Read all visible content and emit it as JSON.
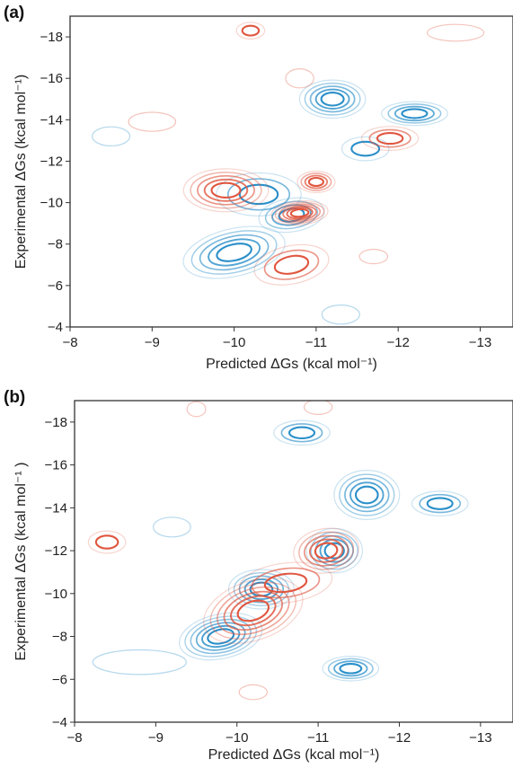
{
  "chart_data": [
    {
      "panel": "(a)",
      "type": "contour",
      "xlabel": "Predicted ΔGs (kcal mol⁻¹)",
      "ylabel": "Experimental ΔGs (kcal mol⁻¹)",
      "xlim": [
        -8,
        -13.4
      ],
      "ylim": [
        -4,
        -19
      ],
      "xticks": [
        "−8",
        "−9",
        "−10",
        "−11",
        "−12",
        "−13"
      ],
      "yticks": [
        "−4",
        "−6",
        "−8",
        "−10",
        "−12",
        "−14",
        "−16",
        "−18"
      ],
      "xtick_values": [
        -8,
        -9,
        -10,
        -11,
        -12,
        -13
      ],
      "ytick_values": [
        -4,
        -6,
        -8,
        -10,
        -12,
        -14,
        -16,
        -18
      ],
      "grid": false,
      "series": [
        {
          "color": "#2a8fc9",
          "clusters": [
            {
              "x": -10.0,
              "y": -7.6,
              "sx": 0.55,
              "sy": 1.0,
              "rho": 0.5,
              "levels": 5
            },
            {
              "x": -10.7,
              "y": -9.4,
              "sx": 0.35,
              "sy": 0.7,
              "rho": 0.3,
              "levels": 4
            },
            {
              "x": -11.2,
              "y": -15.0,
              "sx": 0.35,
              "sy": 0.8,
              "rho": 0.0,
              "levels": 5
            },
            {
              "x": -12.2,
              "y": -14.3,
              "sx": 0.35,
              "sy": 0.5,
              "rho": 0.0,
              "levels": 4
            },
            {
              "x": -10.3,
              "y": -10.4,
              "sx": 0.45,
              "sy": 0.9,
              "rho": 0.0,
              "levels": 3
            },
            {
              "x": -11.6,
              "y": -12.6,
              "sx": 0.25,
              "sy": 0.5,
              "rho": 0.0,
              "levels": 2
            },
            {
              "x": -11.3,
              "y": -4.6,
              "sx": 0.2,
              "sy": 0.4,
              "rho": 0.0,
              "levels": 1
            },
            {
              "x": -8.5,
              "y": -13.2,
              "sx": 0.2,
              "sy": 0.4,
              "rho": 0.0,
              "levels": 1
            }
          ]
        },
        {
          "color": "#e0563f",
          "clusters": [
            {
              "x": -9.9,
              "y": -10.6,
              "sx": 0.45,
              "sy": 0.9,
              "rho": 0.0,
              "levels": 5
            },
            {
              "x": -10.8,
              "y": -9.5,
              "sx": 0.3,
              "sy": 0.5,
              "rho": 0.2,
              "levels": 6
            },
            {
              "x": -11.0,
              "y": -11.0,
              "sx": 0.2,
              "sy": 0.45,
              "rho": 0.0,
              "levels": 4
            },
            {
              "x": -11.9,
              "y": -13.1,
              "sx": 0.3,
              "sy": 0.5,
              "rho": 0.0,
              "levels": 3
            },
            {
              "x": -10.7,
              "y": -7.0,
              "sx": 0.4,
              "sy": 0.8,
              "rho": 0.4,
              "levels": 3
            },
            {
              "x": -10.8,
              "y": -16.0,
              "sx": 0.15,
              "sy": 0.4,
              "rho": 0.0,
              "levels": 1
            },
            {
              "x": -9.0,
              "y": -13.9,
              "sx": 0.25,
              "sy": 0.4,
              "rho": 0.0,
              "levels": 1
            },
            {
              "x": -12.7,
              "y": -18.2,
              "sx": 0.3,
              "sy": 0.35,
              "rho": 0.0,
              "levels": 1
            },
            {
              "x": -10.2,
              "y": -18.3,
              "sx": 0.15,
              "sy": 0.35,
              "rho": 0.0,
              "levels": 2
            },
            {
              "x": -11.7,
              "y": -7.4,
              "sx": 0.15,
              "sy": 0.3,
              "rho": 0.0,
              "levels": 1
            }
          ]
        }
      ]
    },
    {
      "panel": "(b)",
      "type": "contour",
      "xlabel": "Predicted ΔGs (kcal mol⁻¹)",
      "ylabel": "Experimental ΔGs (kcal mol⁻¹ )",
      "xlim": [
        -8,
        -13.4
      ],
      "ylim": [
        -4,
        -19
      ],
      "xticks": [
        "−8",
        "−9",
        "−10",
        "−11",
        "−12",
        "−13"
      ],
      "yticks": [
        "−4",
        "−6",
        "−8",
        "−10",
        "−12",
        "−14",
        "−16",
        "−18"
      ],
      "xtick_values": [
        -8,
        -9,
        -10,
        -11,
        -12,
        -13
      ],
      "ytick_values": [
        -4,
        -6,
        -8,
        -10,
        -12,
        -14,
        -16,
        -18
      ],
      "grid": false,
      "series": [
        {
          "color": "#2a8fc9",
          "clusters": [
            {
              "x": -9.8,
              "y": -8.0,
              "sx": 0.45,
              "sy": 0.9,
              "rho": 0.4,
              "levels": 6
            },
            {
              "x": -10.3,
              "y": -10.2,
              "sx": 0.35,
              "sy": 0.8,
              "rho": 0.0,
              "levels": 5
            },
            {
              "x": -11.2,
              "y": -12.0,
              "sx": 0.3,
              "sy": 0.9,
              "rho": 0.0,
              "levels": 5
            },
            {
              "x": -11.6,
              "y": -14.6,
              "sx": 0.35,
              "sy": 1.0,
              "rho": 0.0,
              "levels": 5
            },
            {
              "x": -11.4,
              "y": -6.5,
              "sx": 0.3,
              "sy": 0.5,
              "rho": 0.0,
              "levels": 4
            },
            {
              "x": -10.8,
              "y": -17.5,
              "sx": 0.3,
              "sy": 0.5,
              "rho": 0.0,
              "levels": 3
            },
            {
              "x": -12.5,
              "y": -14.2,
              "sx": 0.3,
              "sy": 0.5,
              "rho": 0.0,
              "levels": 3
            },
            {
              "x": -9.2,
              "y": -13.1,
              "sx": 0.2,
              "sy": 0.4,
              "rho": 0.0,
              "levels": 1
            },
            {
              "x": -8.8,
              "y": -6.8,
              "sx": 0.5,
              "sy": 0.5,
              "rho": 0.0,
              "levels": 1
            }
          ]
        },
        {
          "color": "#e0563f",
          "clusters": [
            {
              "x": -10.2,
              "y": -9.2,
              "sx": 0.55,
              "sy": 1.2,
              "rho": 0.6,
              "levels": 6
            },
            {
              "x": -11.1,
              "y": -12.0,
              "sx": 0.35,
              "sy": 0.9,
              "rho": 0.2,
              "levels": 5
            },
            {
              "x": -10.6,
              "y": -10.5,
              "sx": 0.5,
              "sy": 0.8,
              "rho": 0.3,
              "levels": 3
            },
            {
              "x": -8.4,
              "y": -12.4,
              "sx": 0.2,
              "sy": 0.45,
              "rho": 0.0,
              "levels": 2
            },
            {
              "x": -11.0,
              "y": -18.7,
              "sx": 0.15,
              "sy": 0.3,
              "rho": 0.0,
              "levels": 1
            },
            {
              "x": -9.5,
              "y": -18.6,
              "sx": 0.1,
              "sy": 0.3,
              "rho": 0.0,
              "levels": 1
            },
            {
              "x": -10.2,
              "y": -5.4,
              "sx": 0.15,
              "sy": 0.3,
              "rho": 0.0,
              "levels": 1
            }
          ]
        }
      ]
    }
  ]
}
